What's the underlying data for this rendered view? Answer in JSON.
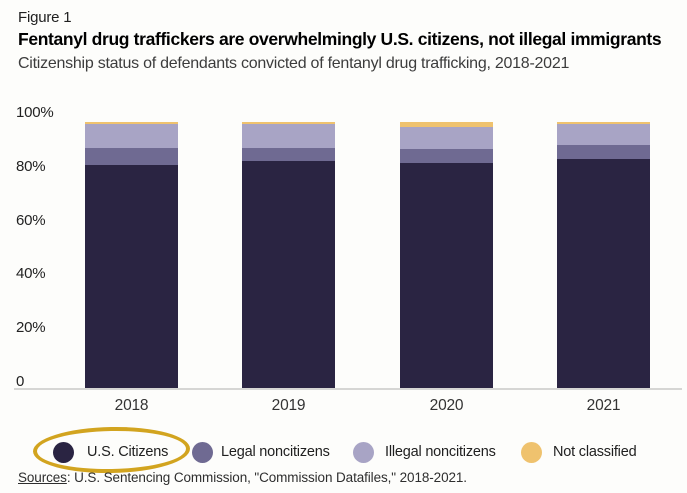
{
  "header": {
    "figure_label": "Figure 1",
    "title": "Fentanyl drug traffickers are overwhelmingly U.S. citizens, not illegal immigrants",
    "subtitle": "Citizenship status of defendants convicted of fentanyl drug trafficking, 2018-2021"
  },
  "chart_data": {
    "type": "bar",
    "stacked": true,
    "title": "Fentanyl drug traffickers are overwhelmingly U.S. citizens, not illegal immigrants",
    "subtitle": "Citizenship status of defendants convicted of fentanyl drug trafficking, 2018-2021",
    "categories": [
      "2018",
      "2019",
      "2020",
      "2021"
    ],
    "series": [
      {
        "name": "U.S. Citizens",
        "color": "#2a2442",
        "values": [
          84.0,
          85.2,
          84.6,
          86.2
        ]
      },
      {
        "name": "Legal noncitizens",
        "color": "#6f6a92",
        "values": [
          6.2,
          5.1,
          5.4,
          5.3
        ]
      },
      {
        "name": "Illegal noncitizens",
        "color": "#a8a4c5",
        "values": [
          8.9,
          8.8,
          8.1,
          7.6
        ]
      },
      {
        "name": "Not classified",
        "color": "#efc26e",
        "values": [
          0.9,
          0.9,
          1.9,
          0.9
        ]
      }
    ],
    "unit": "%",
    "xlabel": "",
    "ylabel": "",
    "ylim": [
      0,
      100
    ],
    "ytick_labels": [
      "100%",
      "80%",
      "60%",
      "40%",
      "20%",
      "0"
    ],
    "grid": false,
    "legend_position": "bottom",
    "annotation": {
      "type": "hand-drawn-ellipse-highlight",
      "around": "U.S. Citizens legend item",
      "color": "#d2a41f"
    }
  },
  "footer": {
    "sources_label": "Sources",
    "sources_text": ": U.S. Sentencing Commission, \"Commission Datafiles,\" 2018-2021."
  },
  "colors": {
    "background": "#fdfdfb",
    "axis_line": "#d6d6d4",
    "highlight_ellipse": "#d2a41f",
    "us_citizens": "#2a2442",
    "legal_noncitizens": "#6f6a92",
    "illegal_noncitizens": "#a8a4c5",
    "not_classified": "#efc26e"
  }
}
